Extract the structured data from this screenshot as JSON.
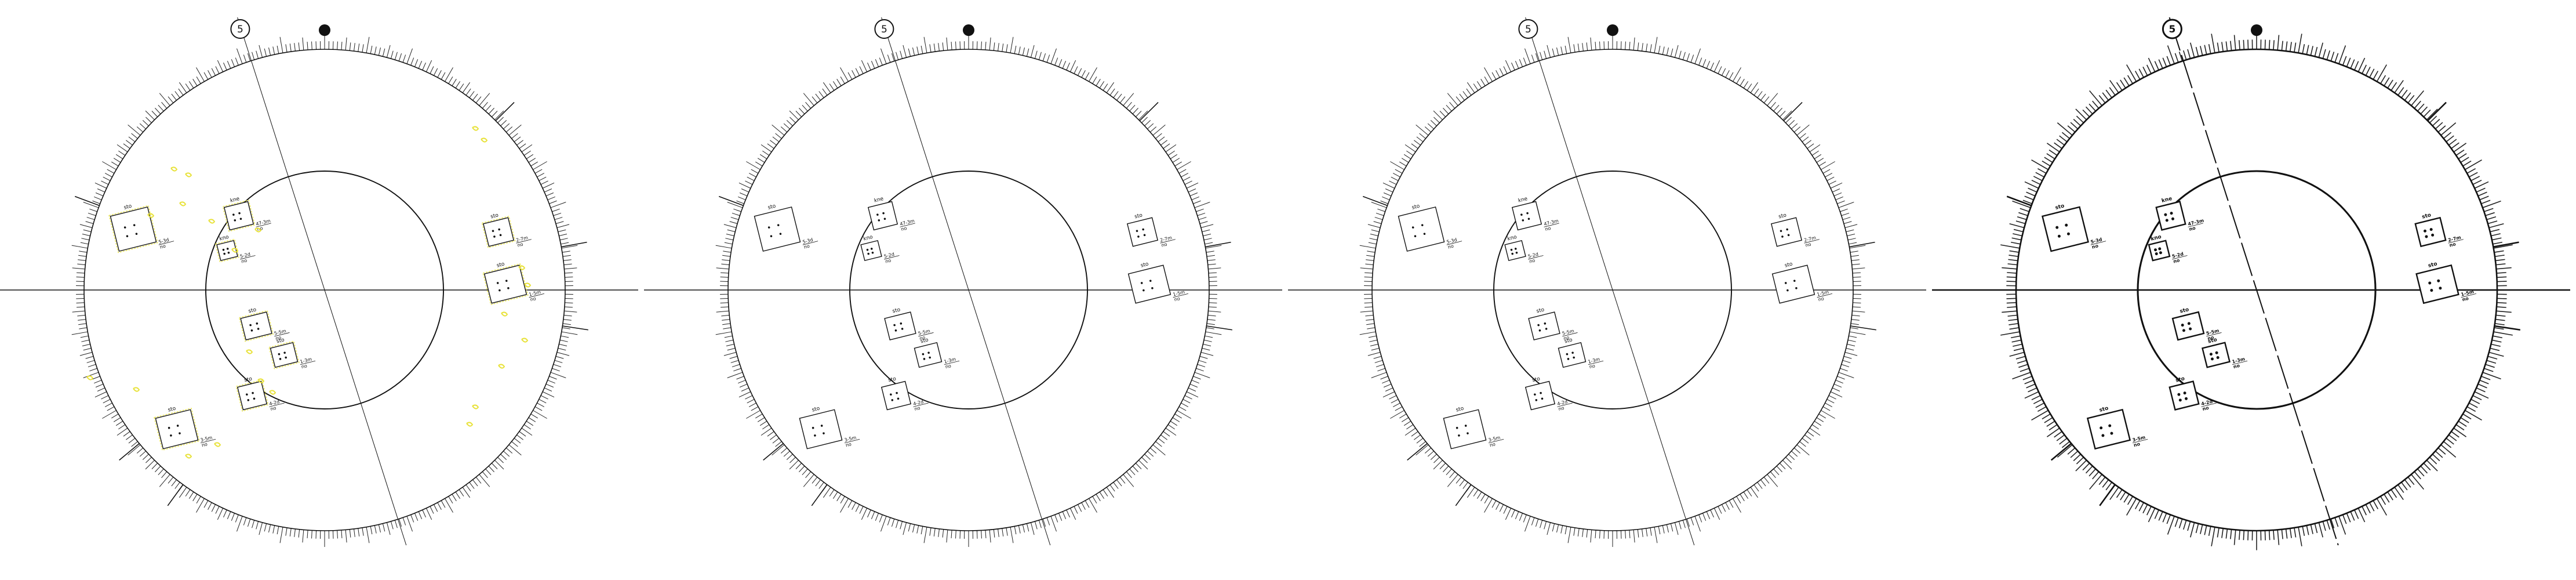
{
  "panels": [
    {
      "id": "panel-1",
      "style": "annotated",
      "heavy": false
    },
    {
      "id": "panel-2",
      "style": "clean",
      "heavy": false
    },
    {
      "id": "panel-3",
      "style": "clean",
      "heavy": false
    },
    {
      "id": "panel-4",
      "style": "clean",
      "heavy": true
    }
  ],
  "markers": {
    "circled_number": "5",
    "dot": ""
  },
  "colors": {
    "ink": "#111111",
    "annotation": "#e8e23a"
  },
  "boxes": [
    {
      "id": "box-a",
      "title": "sto",
      "side_label": "5-3d\nno"
    },
    {
      "id": "box-b",
      "title": "kne",
      "side_label": "47-3m\nno"
    },
    {
      "id": "box-c",
      "title": "kno",
      "side_label": "5-2d\nno"
    },
    {
      "id": "box-d",
      "title": "sto",
      "side_label": "5-5m\nno"
    },
    {
      "id": "box-e",
      "title": "sto",
      "side_label": "1-3m\nno"
    },
    {
      "id": "box-f",
      "title": "sto",
      "side_label": "4-2d\nno"
    },
    {
      "id": "box-g",
      "title": "sto",
      "side_label": "3-5m\nno"
    },
    {
      "id": "box-h",
      "title": "sto",
      "side_label": "2-7m\nno"
    },
    {
      "id": "box-i",
      "title": "sto",
      "side_label": "1-5m\nno"
    }
  ]
}
